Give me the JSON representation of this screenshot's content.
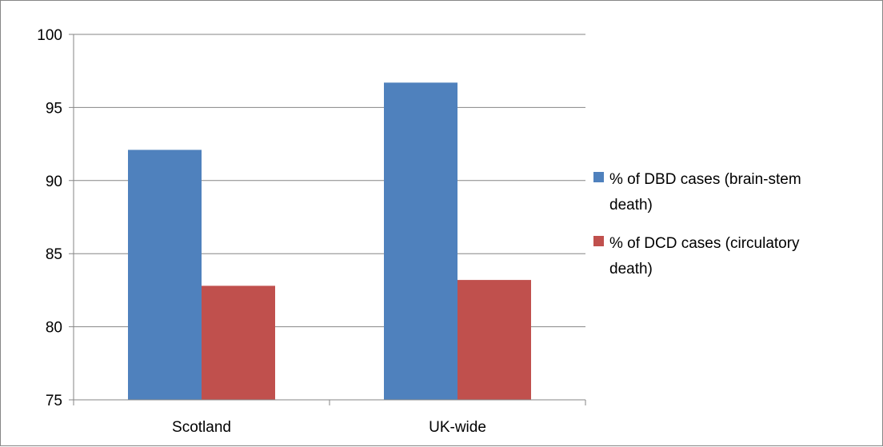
{
  "chart_data": {
    "type": "bar",
    "categories": [
      "Scotland",
      "UK-wide"
    ],
    "series": [
      {
        "name": "% of DBD cases (brain-stem death)",
        "legend_lines": [
          "% of DBD cases (brain-stem",
          "death)"
        ],
        "color": "#4F81BD",
        "values": [
          92.1,
          96.7
        ]
      },
      {
        "name": "% of DCD cases (circulatory death)",
        "legend_lines": [
          "% of DCD cases (circulatory",
          "death)"
        ],
        "color": "#C0504D",
        "values": [
          82.8,
          83.2
        ]
      }
    ],
    "ylim": [
      75,
      100
    ],
    "yticks": [
      "75",
      "80",
      "85",
      "90",
      "95",
      "100"
    ],
    "grid": true,
    "legend_position": "right",
    "title": "",
    "xlabel": "",
    "ylabel": ""
  }
}
